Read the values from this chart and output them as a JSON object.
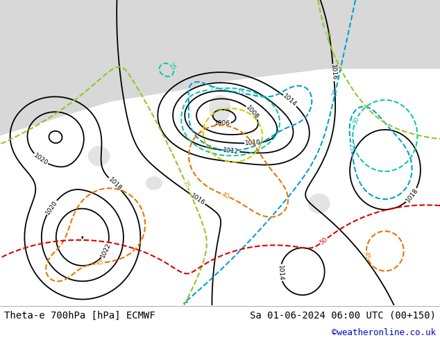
{
  "title_left": "Theta-e 700hPa [hPa] ECMWF",
  "title_right": "Sa 01-06-2024 06:00 UTC (00+150)",
  "credit": "©weatheronline.co.uk",
  "credit_color": "#0000cc",
  "background_color": "#ffffff",
  "map_bg_land_green": "#c8e696",
  "map_bg_land_gray": "#c8c8c8",
  "map_bg_sea_gray": "#d8d8d8",
  "contour_black_color": "#000000",
  "contour_cyan_color": "#00a0d0",
  "contour_teal_color": "#00c8a0",
  "contour_green_color": "#90c820",
  "contour_yellow_color": "#d0c800",
  "contour_orange_color": "#e07800",
  "contour_red_color": "#e00000",
  "title_fontsize": 10,
  "credit_fontsize": 9,
  "label_fontsize": 7
}
